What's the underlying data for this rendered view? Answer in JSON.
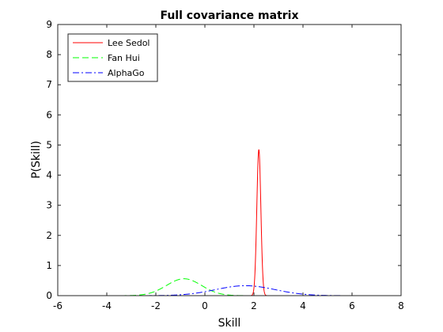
{
  "chart_data": {
    "type": "line",
    "title": "Full covariance matrix",
    "xlabel": "Skill",
    "ylabel": "P(Skill)",
    "xlim": [
      -6,
      8
    ],
    "ylim": [
      0,
      9
    ],
    "xticks": [
      -6,
      -4,
      -2,
      0,
      2,
      4,
      6,
      8
    ],
    "yticks": [
      0,
      1,
      2,
      3,
      4,
      5,
      6,
      7,
      8,
      9
    ],
    "grid": false,
    "legend_position": "top-left",
    "x_range_plotted": [
      -5,
      7
    ],
    "series": [
      {
        "name": "Lee Sedol",
        "color": "#ff0000",
        "dash": "solid",
        "mean": 2.2,
        "peak": 4.85
      },
      {
        "name": "Fan Hui",
        "color": "#00ff00",
        "dash": "dashed",
        "mean": -0.85,
        "peak": 0.56
      },
      {
        "name": "AlphaGo",
        "color": "#0000ff",
        "dash": "dashdot",
        "mean": 1.65,
        "peak": 0.33
      }
    ]
  }
}
